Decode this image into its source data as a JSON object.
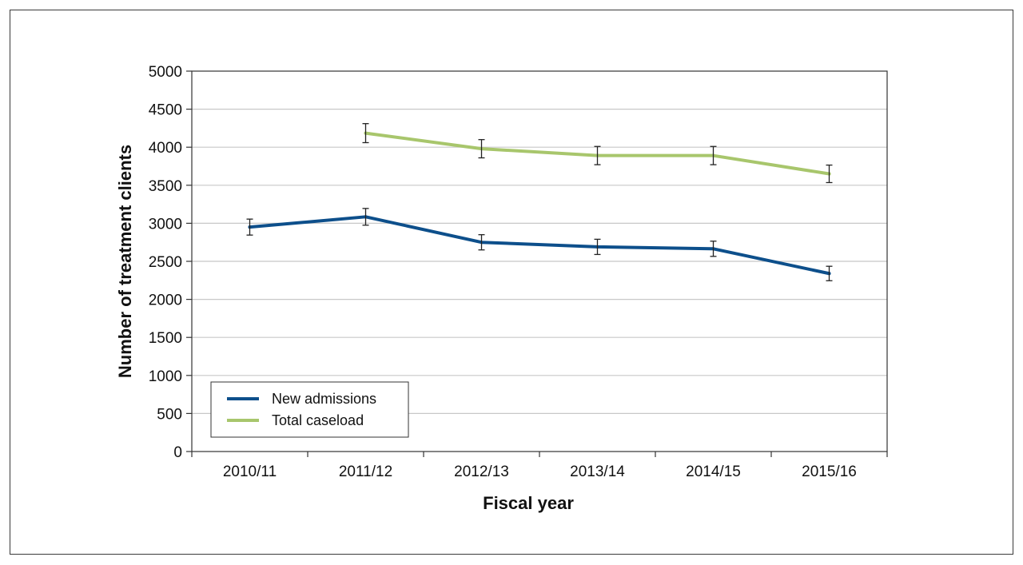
{
  "chart_data": {
    "type": "line",
    "title": "",
    "xlabel": "Fiscal year",
    "ylabel": "Number of treatment clients",
    "categories": [
      "2010/11",
      "2011/12",
      "2012/13",
      "2013/14",
      "2014/15",
      "2015/16"
    ],
    "ylim": [
      0,
      5000
    ],
    "yticks": [
      0,
      500,
      1000,
      1500,
      2000,
      2500,
      3000,
      3500,
      4000,
      4500,
      5000
    ],
    "grid": "horizontal",
    "legend_position": "bottom-left",
    "series": [
      {
        "name": "New admissions",
        "color": "#0d4f8b",
        "values": [
          2950,
          3085,
          2750,
          2690,
          2665,
          2340
        ],
        "error": [
          105,
          110,
          100,
          100,
          100,
          95
        ]
      },
      {
        "name": "Total caseload",
        "color": "#a8c66c",
        "values": [
          null,
          4185,
          3980,
          3890,
          3890,
          3650
        ],
        "error": [
          null,
          125,
          120,
          120,
          120,
          115
        ]
      }
    ]
  }
}
